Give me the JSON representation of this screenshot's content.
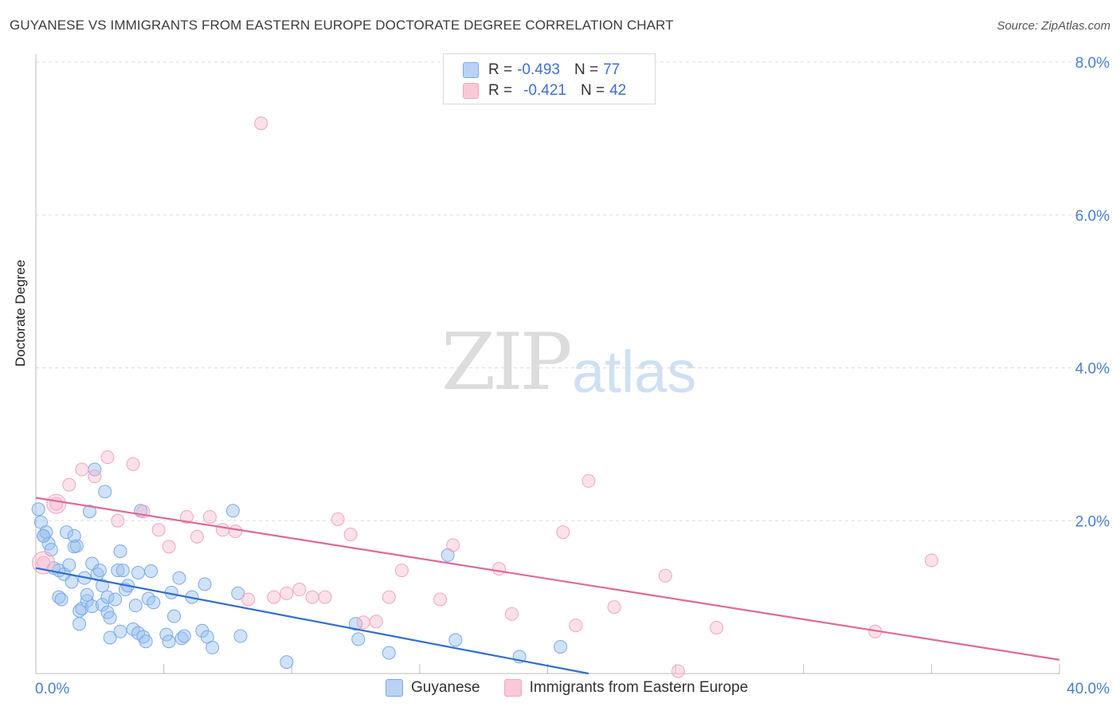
{
  "title": "GUYANESE VS IMMIGRANTS FROM EASTERN EUROPE DOCTORATE DEGREE CORRELATION CHART",
  "source": "Source: ZipAtlas.com",
  "watermark": {
    "zip": "ZIP",
    "atlas": "atlas"
  },
  "legend": {
    "guyanese": {
      "r_label": "R =",
      "r_value": "-0.493",
      "n_label": "N =",
      "n_value": "77"
    },
    "eastern": {
      "r_label": "R =",
      "r_value": "-0.421",
      "n_label": "N =",
      "n_value": "42"
    }
  },
  "bottom_legend": {
    "guyanese": "Guyanese",
    "eastern": "Immigrants from Eastern Europe"
  },
  "colors": {
    "blue": "#7aaae8",
    "blue_line": "#2f6fd0",
    "pink": "#f2a6bd",
    "pink_line": "#e06a94",
    "grid": "#dddddd",
    "tick": "#4a7fd0"
  },
  "chart_data": {
    "type": "scatter",
    "title": "GUYANESE VS IMMIGRANTS FROM EASTERN EUROPE DOCTORATE DEGREE CORRELATION CHART",
    "xlabel": "",
    "ylabel": "Doctorate Degree",
    "xlim": [
      0,
      40
    ],
    "ylim": [
      0,
      8
    ],
    "x_tick_labels": [
      {
        "v": 0,
        "label": "0.0%"
      },
      {
        "v": 40,
        "label": "40.0%"
      }
    ],
    "y_ticks": [
      {
        "v": 2,
        "label": "2.0%"
      },
      {
        "v": 4,
        "label": "4.0%"
      },
      {
        "v": 6,
        "label": "6.0%"
      },
      {
        "v": 8,
        "label": "8.0%"
      }
    ],
    "series": [
      {
        "name": "Guyanese",
        "color": "blue",
        "trend": [
          [
            0,
            1.38
          ],
          [
            21.6,
            0.0
          ]
        ],
        "points": [
          [
            0.1,
            2.15
          ],
          [
            0.2,
            1.98
          ],
          [
            0.3,
            1.8
          ],
          [
            0.4,
            1.85
          ],
          [
            0.5,
            1.7
          ],
          [
            0.6,
            1.62
          ],
          [
            0.7,
            1.38
          ],
          [
            0.9,
            1.0
          ],
          [
            0.9,
            1.35
          ],
          [
            1.0,
            0.97
          ],
          [
            1.1,
            1.3
          ],
          [
            1.2,
            1.85
          ],
          [
            1.3,
            1.42
          ],
          [
            1.4,
            1.2
          ],
          [
            1.5,
            1.66
          ],
          [
            1.6,
            1.67
          ],
          [
            1.5,
            1.8
          ],
          [
            1.7,
            0.82
          ],
          [
            1.7,
            0.65
          ],
          [
            1.8,
            0.85
          ],
          [
            1.9,
            1.25
          ],
          [
            2.0,
            0.95
          ],
          [
            2.0,
            1.03
          ],
          [
            2.1,
            2.12
          ],
          [
            2.2,
            0.88
          ],
          [
            2.2,
            1.44
          ],
          [
            2.3,
            2.67
          ],
          [
            2.4,
            1.3
          ],
          [
            2.5,
            1.35
          ],
          [
            2.6,
            0.9
          ],
          [
            2.6,
            1.15
          ],
          [
            2.7,
            2.38
          ],
          [
            2.8,
            1.0
          ],
          [
            2.8,
            0.8
          ],
          [
            2.9,
            0.73
          ],
          [
            2.9,
            0.47
          ],
          [
            3.1,
            0.97
          ],
          [
            3.2,
            1.35
          ],
          [
            3.3,
            0.55
          ],
          [
            3.3,
            1.6
          ],
          [
            3.4,
            1.35
          ],
          [
            3.5,
            1.1
          ],
          [
            3.6,
            1.15
          ],
          [
            3.8,
            0.58
          ],
          [
            3.9,
            0.89
          ],
          [
            4.0,
            0.53
          ],
          [
            4.0,
            1.32
          ],
          [
            4.1,
            2.13
          ],
          [
            4.2,
            0.48
          ],
          [
            4.3,
            0.42
          ],
          [
            4.4,
            0.98
          ],
          [
            4.5,
            1.34
          ],
          [
            4.6,
            0.93
          ],
          [
            5.1,
            0.51
          ],
          [
            5.2,
            0.42
          ],
          [
            5.3,
            1.06
          ],
          [
            5.4,
            0.75
          ],
          [
            5.6,
            1.25
          ],
          [
            5.7,
            0.46
          ],
          [
            5.8,
            0.49
          ],
          [
            6.1,
            1.0
          ],
          [
            6.5,
            0.56
          ],
          [
            6.6,
            1.17
          ],
          [
            6.7,
            0.48
          ],
          [
            6.9,
            0.34
          ],
          [
            7.7,
            2.13
          ],
          [
            7.9,
            1.05
          ],
          [
            8.0,
            0.49
          ],
          [
            9.8,
            0.15
          ],
          [
            12.5,
            0.65
          ],
          [
            12.6,
            0.45
          ],
          [
            13.8,
            0.27
          ],
          [
            16.1,
            1.55
          ],
          [
            16.4,
            0.44
          ],
          [
            18.9,
            0.22
          ],
          [
            20.5,
            0.35
          ],
          [
            0.3,
            1.8
          ]
        ]
      },
      {
        "name": "Immigrants from Eastern Europe",
        "color": "pink",
        "trend": [
          [
            0,
            2.3
          ],
          [
            40,
            0.18
          ]
        ],
        "points": [
          [
            0.3,
            1.45
          ],
          [
            0.8,
            2.22
          ],
          [
            1.3,
            2.47
          ],
          [
            1.8,
            2.67
          ],
          [
            2.3,
            2.58
          ],
          [
            2.8,
            2.83
          ],
          [
            3.2,
            2.0
          ],
          [
            3.8,
            2.74
          ],
          [
            4.2,
            2.12
          ],
          [
            4.8,
            1.88
          ],
          [
            5.2,
            1.66
          ],
          [
            5.9,
            2.05
          ],
          [
            6.3,
            1.79
          ],
          [
            6.8,
            2.05
          ],
          [
            7.3,
            1.88
          ],
          [
            7.8,
            1.86
          ],
          [
            8.3,
            0.97
          ],
          [
            8.8,
            7.2
          ],
          [
            9.3,
            1.0
          ],
          [
            9.8,
            1.05
          ],
          [
            10.3,
            1.1
          ],
          [
            10.8,
            1.0
          ],
          [
            11.3,
            1.0
          ],
          [
            11.8,
            2.02
          ],
          [
            12.3,
            1.82
          ],
          [
            12.8,
            0.67
          ],
          [
            13.3,
            0.68
          ],
          [
            13.8,
            1.0
          ],
          [
            14.3,
            1.35
          ],
          [
            15.8,
            0.97
          ],
          [
            16.3,
            1.68
          ],
          [
            18.1,
            1.37
          ],
          [
            18.6,
            0.78
          ],
          [
            20.6,
            1.85
          ],
          [
            21.1,
            0.63
          ],
          [
            21.6,
            2.52
          ],
          [
            22.6,
            0.87
          ],
          [
            24.6,
            1.28
          ],
          [
            25.1,
            0.03
          ],
          [
            26.6,
            0.6
          ],
          [
            32.8,
            0.55
          ],
          [
            35.0,
            1.48
          ]
        ]
      }
    ]
  }
}
